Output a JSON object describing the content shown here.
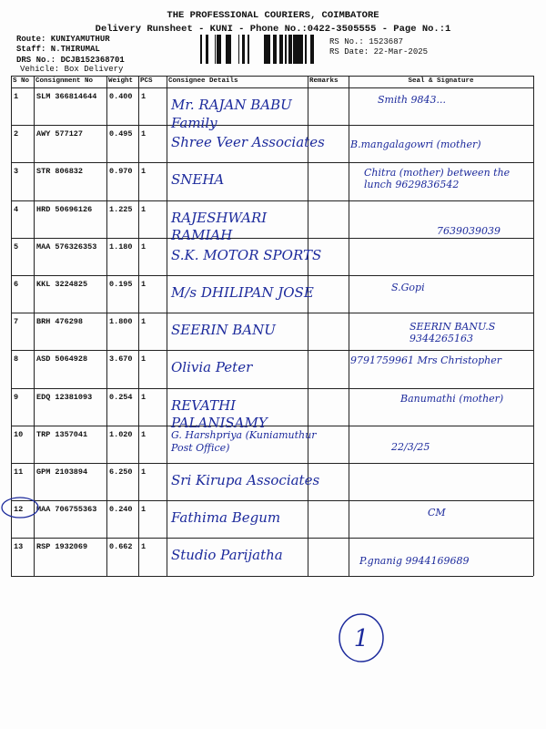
{
  "header": {
    "title": "THE PROFESSIONAL COURIERS, COIMBATORE",
    "subtitle": "Delivery Runsheet - KUNI - Phone No.:0422-3505555 - Page No.:1",
    "route": "Route: KUNIYAMUTHUR",
    "staff": "Staff: N.THIRUMAL",
    "drs_no": "DRS No.: DCJB152368701",
    "vehicle": "Vehicle: Box Delivery",
    "rs_no": "RS No.: 1523687",
    "rs_date": "RS Date: 22-Mar-2025"
  },
  "table": {
    "columns": [
      "S No",
      "Consignment No",
      "Weight",
      "PCS",
      "Consignee Details",
      "Remarks",
      "Seal & Signature"
    ],
    "rows": [
      {
        "sno": "1",
        "consignment": "SLM 366814644",
        "weight": "0.400",
        "pcs": "1",
        "consignee": "Mr. RAJAN BABU Family",
        "signature": "Smith 9843..."
      },
      {
        "sno": "2",
        "consignment": "AWY 577127",
        "weight": "0.495",
        "pcs": "1",
        "consignee": "Shree Veer Associates",
        "signature": "B.mangalagowri (mother)"
      },
      {
        "sno": "3",
        "consignment": "STR 806832",
        "weight": "0.970",
        "pcs": "1",
        "consignee": "SNEHA",
        "signature": "Chitra (mother) between the lunch 9629836542"
      },
      {
        "sno": "4",
        "consignment": "HRD 50696126",
        "weight": "1.225",
        "pcs": "1",
        "consignee": "RAJESHWARI RAMIAH",
        "signature": "7639039039"
      },
      {
        "sno": "5",
        "consignment": "MAA 576326353",
        "weight": "1.180",
        "pcs": "1",
        "consignee": "S.K. MOTOR SPORTS"
      },
      {
        "sno": "6",
        "consignment": "KKL 3224825",
        "weight": "0.195",
        "pcs": "1",
        "consignee": "M/s DHILIPAN JOSE",
        "signature": "S.Gopi"
      },
      {
        "sno": "7",
        "consignment": "BRH 476298",
        "weight": "1.800",
        "pcs": "1",
        "consignee": "SEERIN BANU",
        "signature": "SEERIN BANU.S 9344265163"
      },
      {
        "sno": "8",
        "consignment": "ASD 5064928",
        "weight": "3.670",
        "pcs": "1",
        "consignee": "Olivia Peter",
        "signature": "9791759961 Mrs Christopher"
      },
      {
        "sno": "9",
        "consignment": "EDQ 12381093",
        "weight": "0.254",
        "pcs": "1",
        "consignee": "REVATHI PALANISAMY",
        "signature": "Banumathi (mother)"
      },
      {
        "sno": "10",
        "consignment": "TRP 1357041",
        "weight": "1.020",
        "pcs": "1",
        "consignee": "G. Harshpriya (Kuniamuthur Post Office)",
        "signature": "22/3/25"
      },
      {
        "sno": "11",
        "consignment": "GPM 2103894",
        "weight": "6.250",
        "pcs": "1",
        "consignee": "Sri Kirupa Associates"
      },
      {
        "sno": "12",
        "consignment": "MAA 706755363",
        "weight": "0.240",
        "pcs": "1",
        "consignee": "Fathima Begum",
        "signature": "CM"
      },
      {
        "sno": "13",
        "consignment": "RSP 1932069",
        "weight": "0.662",
        "pcs": "1",
        "consignee": "Studio Parijatha",
        "signature": "P.gnanig 9944169689"
      }
    ]
  },
  "page_mark": "1"
}
